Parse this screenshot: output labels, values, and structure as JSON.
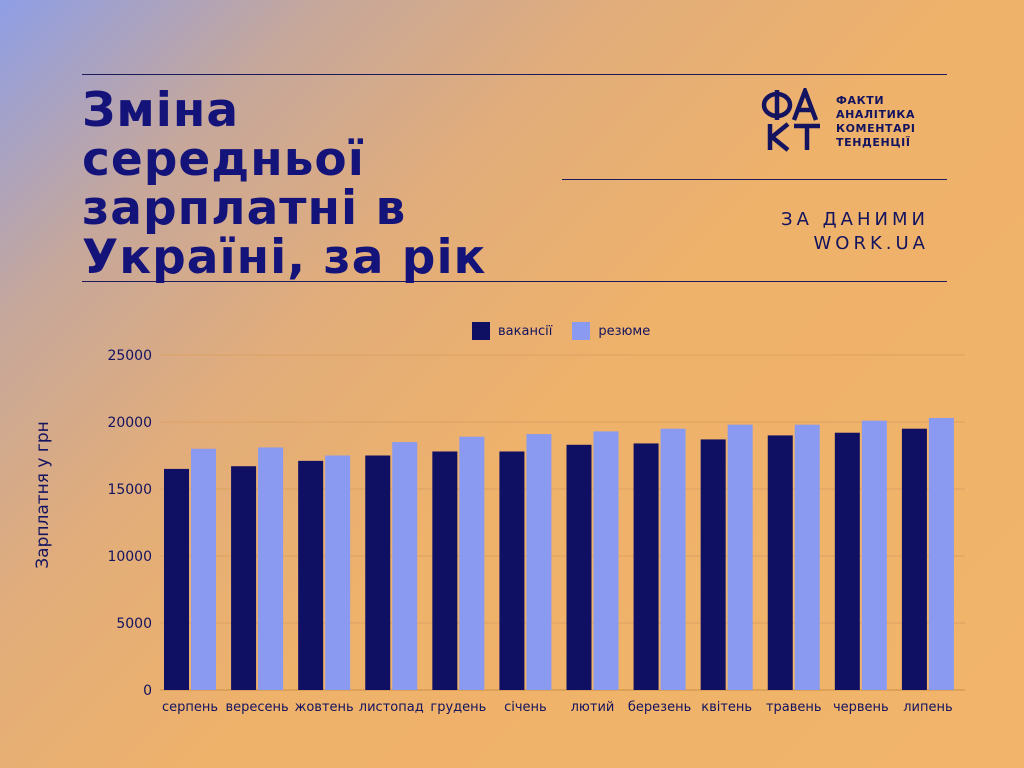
{
  "header": {
    "title_lines": [
      "Зміна",
      "середньої",
      "зарплатні в",
      "Україні, за рік"
    ],
    "logo_word_lines": [
      "ФАКТИ",
      "АНАЛІТИКА",
      "КОМЕНТАРІ",
      "ТЕНДЕНЦІЇ"
    ],
    "source_lines": [
      "ЗА ДАНИМИ",
      "WORK.UA"
    ]
  },
  "colors": {
    "navy": "#0f0f63",
    "periwinkle": "#8a9af0",
    "text": "#13135f"
  },
  "chart_data": {
    "type": "bar",
    "categories": [
      "серпень",
      "вересень",
      "жовтень",
      "листопад",
      "грудень",
      "січень",
      "лютий",
      "березень",
      "квітень",
      "травень",
      "червень",
      "липень"
    ],
    "series": [
      {
        "name": "вакансії",
        "color": "#0f0f63",
        "values": [
          16500,
          16700,
          17100,
          17500,
          17800,
          17800,
          18300,
          18400,
          18700,
          19000,
          19200,
          19500
        ]
      },
      {
        "name": "резюме",
        "color": "#8a9af0",
        "values": [
          18000,
          18100,
          17500,
          18500,
          18900,
          19100,
          19300,
          19500,
          19800,
          19800,
          20100,
          20300
        ]
      }
    ],
    "title": "Зміна середньої зарплатні в Україні, за рік",
    "xlabel": "",
    "ylabel": "Зарплатня у грн",
    "ylim": [
      0,
      25000
    ],
    "yticks": [
      0,
      5000,
      10000,
      15000,
      20000,
      25000
    ],
    "grid": true,
    "legend_position": "top"
  }
}
